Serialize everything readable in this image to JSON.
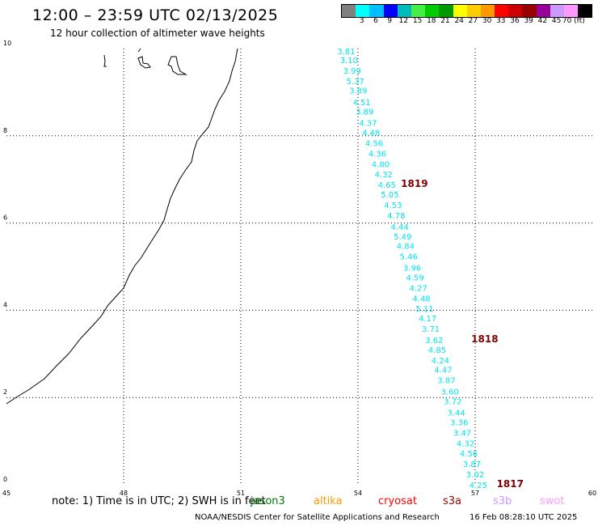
{
  "header": {
    "title": "12:00 – 23:59 UTC 02/13/2025",
    "subtitle": "12 hour collection of altimeter wave heights"
  },
  "legend": {
    "colors": [
      "#808080",
      "#00ffff",
      "#00bfff",
      "#0000ff",
      "#00bbbb",
      "#44ee44",
      "#00cc00",
      "#009900",
      "#ffff00",
      "#ffcc00",
      "#ff9900",
      "#ff0000",
      "#cc0000",
      "#990000",
      "#990099",
      "#cc99ff",
      "#ff99ff",
      "#000000"
    ],
    "labels": [
      "3",
      "6",
      "9",
      "12",
      "15",
      "18",
      "21",
      "24",
      "27",
      "30",
      "33",
      "36",
      "39",
      "42",
      "45",
      "70 (ft)"
    ]
  },
  "map": {
    "x_ticks": [
      "45",
      "48",
      "51",
      "54",
      "57",
      "60"
    ],
    "y_ticks": [
      "0",
      "2",
      "4",
      "6",
      "8",
      "10"
    ],
    "wave_color": "#00e5ee",
    "time_label_color": "#800000",
    "wave_heights": [
      {
        "lat": 9.94,
        "value": "3.81"
      },
      {
        "lat": 9.74,
        "value": "3.10"
      },
      {
        "lat": 9.5,
        "value": "3.99"
      },
      {
        "lat": 9.26,
        "value": "5.37"
      },
      {
        "lat": 9.04,
        "value": "3.89"
      },
      {
        "lat": 8.78,
        "value": "4.51"
      },
      {
        "lat": 8.56,
        "value": "3.89"
      },
      {
        "lat": 8.3,
        "value": "4.37"
      },
      {
        "lat": 8.08,
        "value": "4.48"
      },
      {
        "lat": 7.84,
        "value": "4.56"
      },
      {
        "lat": 7.6,
        "value": "4.36"
      },
      {
        "lat": 7.36,
        "value": "4.80"
      },
      {
        "lat": 7.12,
        "value": "4.32"
      },
      {
        "lat": 6.88,
        "value": "4.65"
      },
      {
        "lat": 6.66,
        "value": "5.05"
      },
      {
        "lat": 6.42,
        "value": "4.53"
      },
      {
        "lat": 6.18,
        "value": "4.78"
      },
      {
        "lat": 5.92,
        "value": "4.44"
      },
      {
        "lat": 5.7,
        "value": "5.49"
      },
      {
        "lat": 5.48,
        "value": "4.84"
      },
      {
        "lat": 5.24,
        "value": "5.46"
      },
      {
        "lat": 4.98,
        "value": "3.96"
      },
      {
        "lat": 4.76,
        "value": "4.59"
      },
      {
        "lat": 4.52,
        "value": "4.27"
      },
      {
        "lat": 4.28,
        "value": "4.48"
      },
      {
        "lat": 4.04,
        "value": "5.11"
      },
      {
        "lat": 3.82,
        "value": "4.17"
      },
      {
        "lat": 3.58,
        "value": "3.71"
      },
      {
        "lat": 3.32,
        "value": "3.62"
      },
      {
        "lat": 3.1,
        "value": "4.85"
      },
      {
        "lat": 2.86,
        "value": "4.24"
      },
      {
        "lat": 2.64,
        "value": "4.47"
      },
      {
        "lat": 2.4,
        "value": "3.87"
      },
      {
        "lat": 2.14,
        "value": "3.60"
      },
      {
        "lat": 1.92,
        "value": "3.72"
      },
      {
        "lat": 1.66,
        "value": "3.44"
      },
      {
        "lat": 1.44,
        "value": "3.36"
      },
      {
        "lat": 1.2,
        "value": "3.47"
      },
      {
        "lat": 0.96,
        "value": "4.32"
      },
      {
        "lat": 0.72,
        "value": "4.56"
      },
      {
        "lat": 0.48,
        "value": "3.87"
      },
      {
        "lat": 0.24,
        "value": "3.02"
      },
      {
        "lat": 0.0,
        "value": "4.25"
      }
    ],
    "time_labels": [
      {
        "lat": 6.88,
        "lon": 55.1,
        "text": "1819"
      },
      {
        "lat": 3.32,
        "lon": 56.9,
        "text": "1818"
      },
      {
        "lat": 0.0,
        "lon": 57.55,
        "text": "1817"
      }
    ]
  },
  "footer": {
    "note": "note:  1) Time is in UTC;  2) SWH is in feet",
    "satellites": [
      {
        "name": "jason3",
        "color": "#007700"
      },
      {
        "name": "altika",
        "color": "#ff9900"
      },
      {
        "name": "cryosat",
        "color": "#ff0000"
      },
      {
        "name": "s3a",
        "color": "#990000"
      },
      {
        "name": "s3b",
        "color": "#cc99ff"
      },
      {
        "name": "swot",
        "color": "#ff99ff"
      }
    ],
    "credit": "NOAA/NESDIS Center for Satellite Applications and Research",
    "timestamp": "16 Feb 08:28:10 UTC 2025"
  }
}
